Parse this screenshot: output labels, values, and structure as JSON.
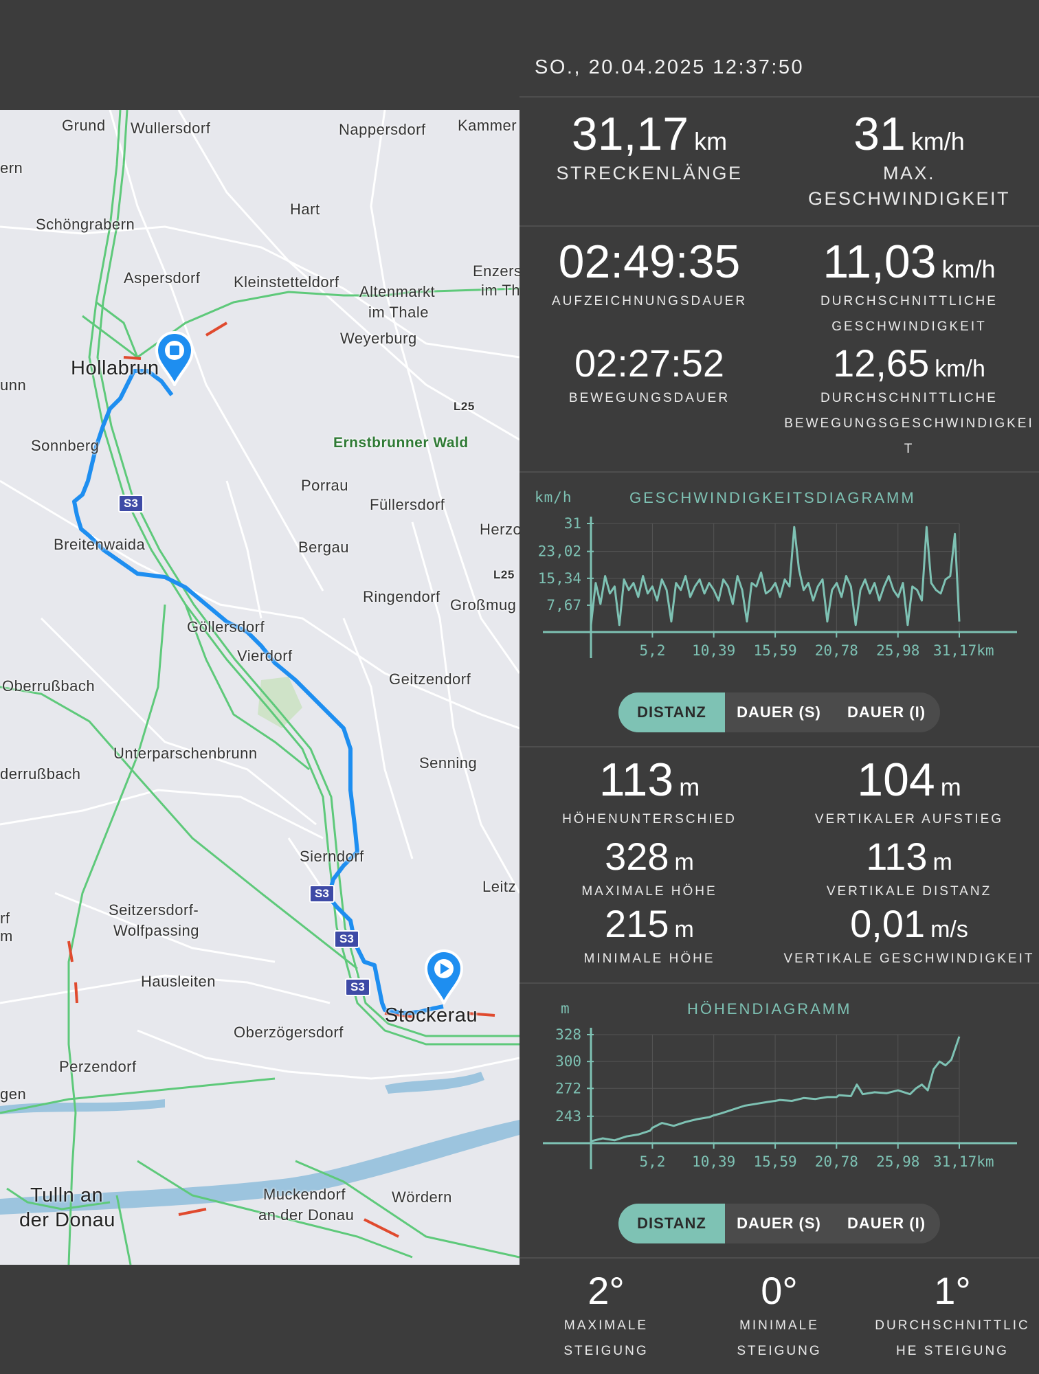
{
  "header": {
    "datetime": "SO., 20.04.2025 12:37:50"
  },
  "map": {
    "places": [
      {
        "id": "grund",
        "text": "Grund"
      },
      {
        "id": "wullersdorf",
        "text": "Wullersdorf"
      },
      {
        "id": "nappersdorf",
        "text": "Nappersdorf"
      },
      {
        "id": "kammer",
        "text": "Kammer"
      },
      {
        "id": "ern",
        "text": "ern"
      },
      {
        "id": "schoengrabern",
        "text": "Schöngrabern"
      },
      {
        "id": "hart",
        "text": "Hart"
      },
      {
        "id": "aspersdorf",
        "text": "Aspersdorf"
      },
      {
        "id": "kleinstetteldorf",
        "text": "Kleinstetteldorf"
      },
      {
        "id": "altenmarkt",
        "text": "Altenmarkt"
      },
      {
        "id": "imthale",
        "text": "im Thale"
      },
      {
        "id": "enzers",
        "text": "Enzers"
      },
      {
        "id": "imth",
        "text": "im Th"
      },
      {
        "id": "weyerburg",
        "text": "Weyerburg"
      },
      {
        "id": "hollabrunn",
        "text": "Hollabrun"
      },
      {
        "id": "unn",
        "text": "unn"
      },
      {
        "id": "l25a",
        "text": "L25"
      },
      {
        "id": "sonnberg",
        "text": "Sonnberg"
      },
      {
        "id": "ernstbrunner",
        "text": "Ernstbrunner Wald"
      },
      {
        "id": "porrau",
        "text": "Porrau"
      },
      {
        "id": "fuellersdorf",
        "text": "Füllersdorf"
      },
      {
        "id": "herzo",
        "text": "Herzo"
      },
      {
        "id": "breitenwaida",
        "text": "Breitenwaida"
      },
      {
        "id": "bergau",
        "text": "Bergau"
      },
      {
        "id": "l25b",
        "text": "L25"
      },
      {
        "id": "ringendorf",
        "text": "Ringendorf"
      },
      {
        "id": "grossmug",
        "text": "Großmug"
      },
      {
        "id": "goellersdorf",
        "text": "Göllersdorf"
      },
      {
        "id": "vierdorf",
        "text": "Vierdorf"
      },
      {
        "id": "oberrussbach",
        "text": "Oberrußbach"
      },
      {
        "id": "geitzendorf",
        "text": "Geitzendorf"
      },
      {
        "id": "unterparschenbrunn",
        "text": "Unterparschenbrunn"
      },
      {
        "id": "senning",
        "text": "Senning"
      },
      {
        "id": "derrussbach",
        "text": "derrußbach"
      },
      {
        "id": "sierndorf",
        "text": "Sierndorf"
      },
      {
        "id": "leitz",
        "text": "Leitz"
      },
      {
        "id": "seitzersdorf",
        "text": "Seitzersdorf-"
      },
      {
        "id": "wolfpassing",
        "text": "Wolfpassing"
      },
      {
        "id": "rf",
        "text": "rf"
      },
      {
        "id": "m",
        "text": "m"
      },
      {
        "id": "hausleiten",
        "text": "Hausleiten"
      },
      {
        "id": "stockerau",
        "text": "Stockerau"
      },
      {
        "id": "oberzoegersdorf",
        "text": "Oberzögersdorf"
      },
      {
        "id": "perzendorf",
        "text": "Perzendorf"
      },
      {
        "id": "gen",
        "text": "gen"
      },
      {
        "id": "tulln1",
        "text": "Tulln an"
      },
      {
        "id": "tulln2",
        "text": "der Donau"
      },
      {
        "id": "muckendorf1",
        "text": "Muckendorf"
      },
      {
        "id": "muckendorf2",
        "text": "an der Donau"
      },
      {
        "id": "woerdern",
        "text": "Wördern"
      }
    ],
    "shields": [
      "S3",
      "S3",
      "S3",
      "S3"
    ],
    "colors": {
      "route": "#1e8ef0",
      "land": "#e7e8ed",
      "motorway": "#5ec97a",
      "water": "#9cc4de"
    }
  },
  "summary": {
    "distance": {
      "value": "31,17",
      "unit": "km",
      "label": "STRECKENLÄNGE"
    },
    "max_speed": {
      "value": "31",
      "unit": "km/h",
      "label1": "MAX.",
      "label2": "GESCHWINDIGKEIT"
    },
    "recording_duration": {
      "value": "02:49:35",
      "label": "AUFZEICHNUNGSDAUER"
    },
    "avg_speed": {
      "value": "11,03",
      "unit": "km/h",
      "label1": "DURCHSCHNITTLICHE",
      "label2": "GESCHWINDIGKEIT"
    },
    "moving_duration": {
      "value": "02:27:52",
      "label": "BEWEGUNGSDAUER"
    },
    "avg_moving_speed": {
      "value": "12,65",
      "unit": "km/h",
      "label1": "DURCHSCHNITTLICHE",
      "label2": "BEWEGUNGSGESCHWINDIGKEI",
      "label3": "T"
    }
  },
  "speed_chart": {
    "title": "GESCHWINDIGKEITSDIAGRAMM",
    "yunit": "km/h",
    "yticks": [
      "31",
      "23,02",
      "15,34",
      "7,67"
    ],
    "xticks": [
      "5,2",
      "10,39",
      "15,59",
      "20,78",
      "25,98",
      "31,17km"
    ],
    "toggle": [
      "DISTANZ",
      "DAUER (S)",
      "DAUER (I)"
    ],
    "active": "DISTANZ"
  },
  "elevation": {
    "height_diff": {
      "value": "113",
      "unit": "m",
      "label": "HÖHENUNTERSCHIED"
    },
    "vertical_ascent": {
      "value": "104",
      "unit": "m",
      "label": "VERTIKALER AUFSTIEG"
    },
    "max_height": {
      "value": "328",
      "unit": "m",
      "label": "MAXIMALE HÖHE"
    },
    "vertical_distance": {
      "value": "113",
      "unit": "m",
      "label": "VERTIKALE DISTANZ"
    },
    "min_height": {
      "value": "215",
      "unit": "m",
      "label": "MINIMALE HÖHE"
    },
    "vertical_speed": {
      "value": "0,01",
      "unit": "m/s",
      "label": "VERTIKALE GESCHWINDIGKEIT"
    }
  },
  "height_chart": {
    "title": "HÖHENDIAGRAMM",
    "yunit": "m",
    "yticks": [
      "328",
      "300",
      "272",
      "243"
    ],
    "xticks": [
      "5,2",
      "10,39",
      "15,59",
      "20,78",
      "25,98",
      "31,17km"
    ],
    "toggle": [
      "DISTANZ",
      "DAUER (S)",
      "DAUER (I)"
    ],
    "active": "DISTANZ"
  },
  "slope": {
    "max": {
      "value": "2°",
      "label1": "MAXIMALE",
      "label2": "STEIGUNG"
    },
    "min": {
      "value": "0°",
      "label1": "MINIMALE",
      "label2": "STEIGUNG"
    },
    "avg": {
      "value": "1°",
      "label1": "DURCHSCHNITTLIC",
      "label2": "HE STEIGUNG"
    }
  },
  "chart_data": [
    {
      "type": "line",
      "title": "GESCHWINDIGKEITSDIAGRAMM",
      "ylabel": "km/h",
      "xlabel": "km",
      "xlim": [
        0,
        31.17
      ],
      "ylim": [
        0,
        31
      ],
      "x": [
        0,
        0.4,
        0.8,
        1.2,
        1.6,
        2.0,
        2.4,
        2.8,
        3.2,
        3.6,
        4.0,
        4.4,
        4.8,
        5.2,
        5.6,
        6.0,
        6.4,
        6.8,
        7.2,
        7.6,
        8.0,
        8.4,
        8.8,
        9.2,
        9.6,
        10.0,
        10.4,
        10.8,
        11.2,
        11.6,
        12.0,
        12.4,
        12.8,
        13.2,
        13.6,
        14.0,
        14.4,
        14.8,
        15.2,
        15.6,
        16.0,
        16.4,
        16.8,
        17.2,
        17.6,
        18.0,
        18.4,
        18.8,
        19.2,
        19.6,
        20.0,
        20.4,
        20.8,
        21.2,
        21.6,
        22.0,
        22.4,
        22.8,
        23.2,
        23.6,
        24.0,
        24.4,
        24.8,
        25.2,
        25.6,
        26.0,
        26.4,
        26.8,
        27.2,
        27.6,
        28.0,
        28.4,
        28.8,
        29.2,
        29.6,
        30.0,
        30.4,
        30.8,
        31.17
      ],
      "y": [
        2,
        14,
        8,
        16,
        11,
        13,
        2,
        15,
        12,
        14,
        10,
        16,
        11,
        13,
        9,
        15,
        12,
        3,
        14,
        12,
        16,
        10,
        13,
        15,
        11,
        14,
        12,
        9,
        15,
        13,
        8,
        16,
        12,
        3,
        14,
        13,
        17,
        11,
        12,
        14,
        10,
        15,
        13,
        30,
        18,
        12,
        14,
        9,
        13,
        15,
        3,
        12,
        14,
        10,
        16,
        13,
        2,
        12,
        15,
        11,
        14,
        9,
        13,
        16,
        12,
        10,
        14,
        2,
        13,
        12,
        9,
        30,
        14,
        12,
        11,
        15,
        16,
        28,
        3
      ],
      "series": [
        {
          "name": "",
          "values": "see y"
        }
      ]
    },
    {
      "type": "line",
      "title": "HÖHENDIAGRAMM",
      "ylabel": "m",
      "xlabel": "km",
      "xlim": [
        0,
        31.17
      ],
      "ylim": [
        215,
        328
      ],
      "x": [
        0,
        1,
        2,
        3,
        4,
        5,
        5.2,
        6,
        7,
        8,
        9,
        10,
        10.39,
        11,
        12,
        13,
        14,
        15,
        15.59,
        16,
        17,
        18,
        19,
        20,
        20.78,
        21,
        22,
        22.5,
        23,
        24,
        25,
        25.98,
        26.5,
        27,
        27.5,
        28,
        28.5,
        29,
        29.5,
        30,
        30.5,
        31.17
      ],
      "y": [
        217,
        220,
        218,
        222,
        224,
        228,
        231,
        236,
        233,
        237,
        240,
        242,
        244,
        246,
        250,
        254,
        256,
        258,
        259,
        260,
        259,
        262,
        261,
        263,
        263,
        265,
        264,
        276,
        266,
        268,
        267,
        270,
        268,
        266,
        272,
        276,
        270,
        292,
        300,
        296,
        302,
        326
      ]
    }
  ]
}
